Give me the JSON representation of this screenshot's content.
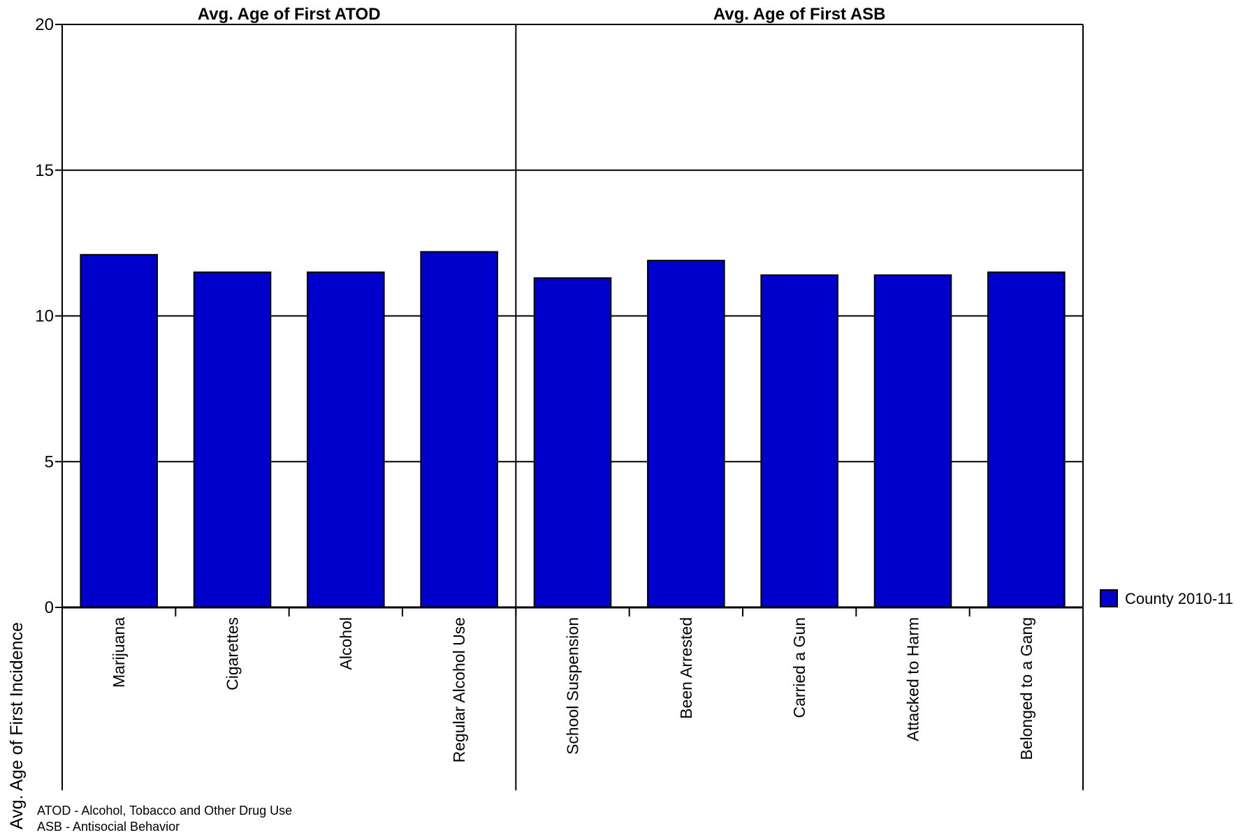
{
  "chart_data": {
    "type": "bar",
    "ylabel": "Avg. Age of First Incidence",
    "ylim": [
      0,
      20
    ],
    "yticks": [
      0,
      5,
      10,
      15,
      20
    ],
    "grid": true,
    "legend_placement": "right",
    "bar_color": "#0000CC",
    "series": [
      {
        "name": "County 2010-11"
      }
    ],
    "groups": [
      {
        "title": "Avg. Age of First ATOD",
        "categories": [
          "Marijuana",
          "Cigarettes",
          "Alcohol",
          "Regular Alcohol Use"
        ],
        "values": [
          12.1,
          11.5,
          11.5,
          12.2
        ]
      },
      {
        "title": "Avg. Age of First ASB",
        "categories": [
          "School Suspension",
          "Been Arrested",
          "Carried a Gun",
          "Attacked to Harm",
          "Belonged to a Gang"
        ],
        "values": [
          11.3,
          11.9,
          11.4,
          11.4,
          11.5
        ]
      }
    ]
  },
  "notes": [
    "ATOD - Alcohol, Tobacco and Other Drug Use",
    "ASB - Antisocial Behavior"
  ]
}
